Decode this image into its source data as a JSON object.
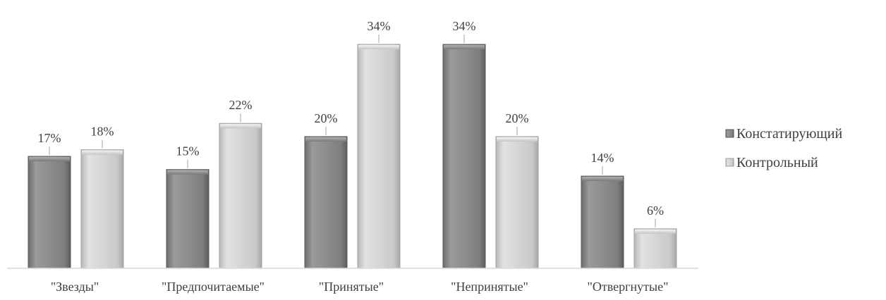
{
  "chart_data": {
    "type": "bar",
    "categories": [
      "\"Звезды\"",
      "\"Предпочитаемые\"",
      "\"Принятые\"",
      "\"Непринятые\"",
      "\"Отвергнутые\""
    ],
    "series": [
      {
        "name": "Констатирующий",
        "values": [
          17,
          15,
          20,
          34,
          14
        ],
        "color": "#8c8c8c"
      },
      {
        "name": "Контрольный",
        "values": [
          18,
          22,
          34,
          20,
          6
        ],
        "color": "#cfcfcf"
      }
    ],
    "value_suffix": "%",
    "ylim": [
      0,
      34
    ],
    "grid": false,
    "legend_position": "right"
  }
}
